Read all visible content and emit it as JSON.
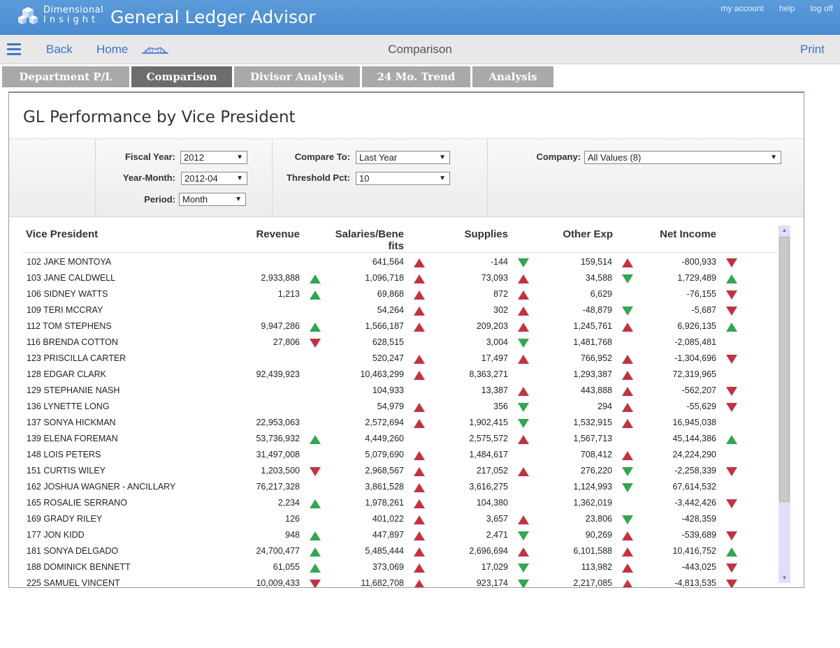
{
  "header": {
    "logo_line1": "Dimensional",
    "logo_line2": "Insight",
    "title": "General Ledger Advisor",
    "links": [
      "my account",
      "help",
      "log off"
    ]
  },
  "nav": {
    "back": "Back",
    "home": "Home",
    "center_title": "Comparison",
    "print": "Print"
  },
  "tabs": [
    "Department P/L",
    "Comparison",
    "Divisor Analysis",
    "24 Mo. Trend",
    "Analysis"
  ],
  "active_tab": "Comparison",
  "panel": {
    "title": "GL Performance by Vice President"
  },
  "filters": {
    "fiscal_year": {
      "label": "Fiscal Year:",
      "value": "2012"
    },
    "year_month": {
      "label": "Year-Month:",
      "value": "2012-04"
    },
    "period": {
      "label": "Period:",
      "value": "Month"
    },
    "compare_to": {
      "label": "Compare To:",
      "value": "Last Year"
    },
    "threshold": {
      "label": "Threshold Pct:",
      "value": "10"
    },
    "company": {
      "label": "Company:",
      "value": "All Values (8)"
    }
  },
  "colors": {
    "up_bad": "#c4323f",
    "good": "#2fa84f"
  },
  "table": {
    "columns": [
      "Vice President",
      "Revenue",
      "Salaries/Bene",
      "fits",
      "Supplies",
      "Other Exp",
      "Net Income"
    ],
    "rows": [
      {
        "vp": "102 JAKE MONTOYA",
        "rev": "",
        "rev_i": "",
        "sal": "641,564",
        "sal_i": "up-red",
        "sup": "-144",
        "sup_i": "down-green",
        "oth": "159,514",
        "oth_i": "up-red",
        "net": "-800,933",
        "net_i": "down-red"
      },
      {
        "vp": "103 JANE CALDWELL",
        "rev": "2,933,888",
        "rev_i": "up-green",
        "sal": "1,096,718",
        "sal_i": "up-red",
        "sup": "73,093",
        "sup_i": "up-red",
        "oth": "34,588",
        "oth_i": "down-green",
        "net": "1,729,489",
        "net_i": "up-green"
      },
      {
        "vp": "106 SIDNEY WATTS",
        "rev": "1,213",
        "rev_i": "up-green",
        "sal": "69,868",
        "sal_i": "up-red",
        "sup": "872",
        "sup_i": "up-red",
        "oth": "6,629",
        "oth_i": "",
        "net": "-76,155",
        "net_i": "down-red"
      },
      {
        "vp": "109 TERI MCCRAY",
        "rev": "",
        "rev_i": "",
        "sal": "54,264",
        "sal_i": "up-red",
        "sup": "302",
        "sup_i": "up-red",
        "oth": "-48,879",
        "oth_i": "down-green",
        "net": "-5,687",
        "net_i": "down-red"
      },
      {
        "vp": "112 TOM STEPHENS",
        "rev": "9,947,286",
        "rev_i": "up-green",
        "sal": "1,566,187",
        "sal_i": "up-red",
        "sup": "209,203",
        "sup_i": "up-red",
        "oth": "1,245,761",
        "oth_i": "up-red",
        "net": "6,926,135",
        "net_i": "up-green"
      },
      {
        "vp": "116 BRENDA COTTON",
        "rev": "27,806",
        "rev_i": "down-red",
        "sal": "628,515",
        "sal_i": "",
        "sup": "3,004",
        "sup_i": "down-green",
        "oth": "1,481,768",
        "oth_i": "",
        "net": "-2,085,481",
        "net_i": ""
      },
      {
        "vp": "123 PRISCILLA CARTER",
        "rev": "",
        "rev_i": "",
        "sal": "520,247",
        "sal_i": "up-red",
        "sup": "17,497",
        "sup_i": "up-red",
        "oth": "766,952",
        "oth_i": "up-red",
        "net": "-1,304,696",
        "net_i": "down-red"
      },
      {
        "vp": "128 EDGAR CLARK",
        "rev": "92,439,923",
        "rev_i": "",
        "sal": "10,463,299",
        "sal_i": "up-red",
        "sup": "8,363,271",
        "sup_i": "",
        "oth": "1,293,387",
        "oth_i": "up-red",
        "net": "72,319,965",
        "net_i": ""
      },
      {
        "vp": "129 STEPHANIE NASH",
        "rev": "",
        "rev_i": "",
        "sal": "104,933",
        "sal_i": "",
        "sup": "13,387",
        "sup_i": "up-red",
        "oth": "443,888",
        "oth_i": "up-red",
        "net": "-562,207",
        "net_i": "down-red"
      },
      {
        "vp": "136 LYNETTE LONG",
        "rev": "",
        "rev_i": "",
        "sal": "54,979",
        "sal_i": "up-red",
        "sup": "356",
        "sup_i": "down-green",
        "oth": "294",
        "oth_i": "up-red",
        "net": "-55,629",
        "net_i": "down-red"
      },
      {
        "vp": "137 SONYA HICKMAN",
        "rev": "22,953,063",
        "rev_i": "",
        "sal": "2,572,694",
        "sal_i": "up-red",
        "sup": "1,902,415",
        "sup_i": "down-green",
        "oth": "1,532,915",
        "oth_i": "up-red",
        "net": "16,945,038",
        "net_i": ""
      },
      {
        "vp": "139 ELENA FOREMAN",
        "rev": "53,736,932",
        "rev_i": "up-green",
        "sal": "4,449,260",
        "sal_i": "",
        "sup": "2,575,572",
        "sup_i": "up-red",
        "oth": "1,567,713",
        "oth_i": "",
        "net": "45,144,386",
        "net_i": "up-green"
      },
      {
        "vp": "148 LOIS PETERS",
        "rev": "31,497,008",
        "rev_i": "",
        "sal": "5,079,690",
        "sal_i": "up-red",
        "sup": "1,484,617",
        "sup_i": "",
        "oth": "708,412",
        "oth_i": "up-red",
        "net": "24,224,290",
        "net_i": ""
      },
      {
        "vp": "151 CURTIS WILEY",
        "rev": "1,203,500",
        "rev_i": "down-red",
        "sal": "2,968,567",
        "sal_i": "up-red",
        "sup": "217,052",
        "sup_i": "up-red",
        "oth": "276,220",
        "oth_i": "down-green",
        "net": "-2,258,339",
        "net_i": "down-red"
      },
      {
        "vp": "162 JOSHUA WAGNER - ANCILLARY",
        "rev": "76,217,328",
        "rev_i": "",
        "sal": "3,861,528",
        "sal_i": "up-red",
        "sup": "3,616,275",
        "sup_i": "",
        "oth": "1,124,993",
        "oth_i": "down-green",
        "net": "67,614,532",
        "net_i": ""
      },
      {
        "vp": "165 ROSALIE SERRANO",
        "rev": "2,234",
        "rev_i": "up-green",
        "sal": "1,978,261",
        "sal_i": "up-red",
        "sup": "104,380",
        "sup_i": "",
        "oth": "1,362,019",
        "oth_i": "",
        "net": "-3,442,426",
        "net_i": "down-red"
      },
      {
        "vp": "169 GRADY RILEY",
        "rev": "126",
        "rev_i": "",
        "sal": "401,022",
        "sal_i": "up-red",
        "sup": "3,657",
        "sup_i": "up-red",
        "oth": "23,806",
        "oth_i": "down-green",
        "net": "-428,359",
        "net_i": ""
      },
      {
        "vp": "177 JON KIDD",
        "rev": "948",
        "rev_i": "up-green",
        "sal": "447,897",
        "sal_i": "up-red",
        "sup": "2,471",
        "sup_i": "down-green",
        "oth": "90,269",
        "oth_i": "up-red",
        "net": "-539,689",
        "net_i": "down-red"
      },
      {
        "vp": "181 SONYA DELGADO",
        "rev": "24,700,477",
        "rev_i": "up-green",
        "sal": "5,485,444",
        "sal_i": "up-red",
        "sup": "2,696,694",
        "sup_i": "up-red",
        "oth": "6,101,588",
        "oth_i": "up-red",
        "net": "10,416,752",
        "net_i": "up-green"
      },
      {
        "vp": "188 DOMINICK BENNETT",
        "rev": "61,055",
        "rev_i": "up-green",
        "sal": "373,069",
        "sal_i": "up-red",
        "sup": "17,029",
        "sup_i": "down-green",
        "oth": "113,982",
        "oth_i": "up-red",
        "net": "-443,025",
        "net_i": "down-red"
      },
      {
        "vp": "225 SAMUEL VINCENT",
        "rev": "10,009,433",
        "rev_i": "down-red",
        "sal": "11,682,708",
        "sal_i": "up-red",
        "sup": "923,174",
        "sup_i": "down-green",
        "oth": "2,217,085",
        "oth_i": "up-red",
        "net": "-4,813,535",
        "net_i": "down-red"
      }
    ]
  }
}
